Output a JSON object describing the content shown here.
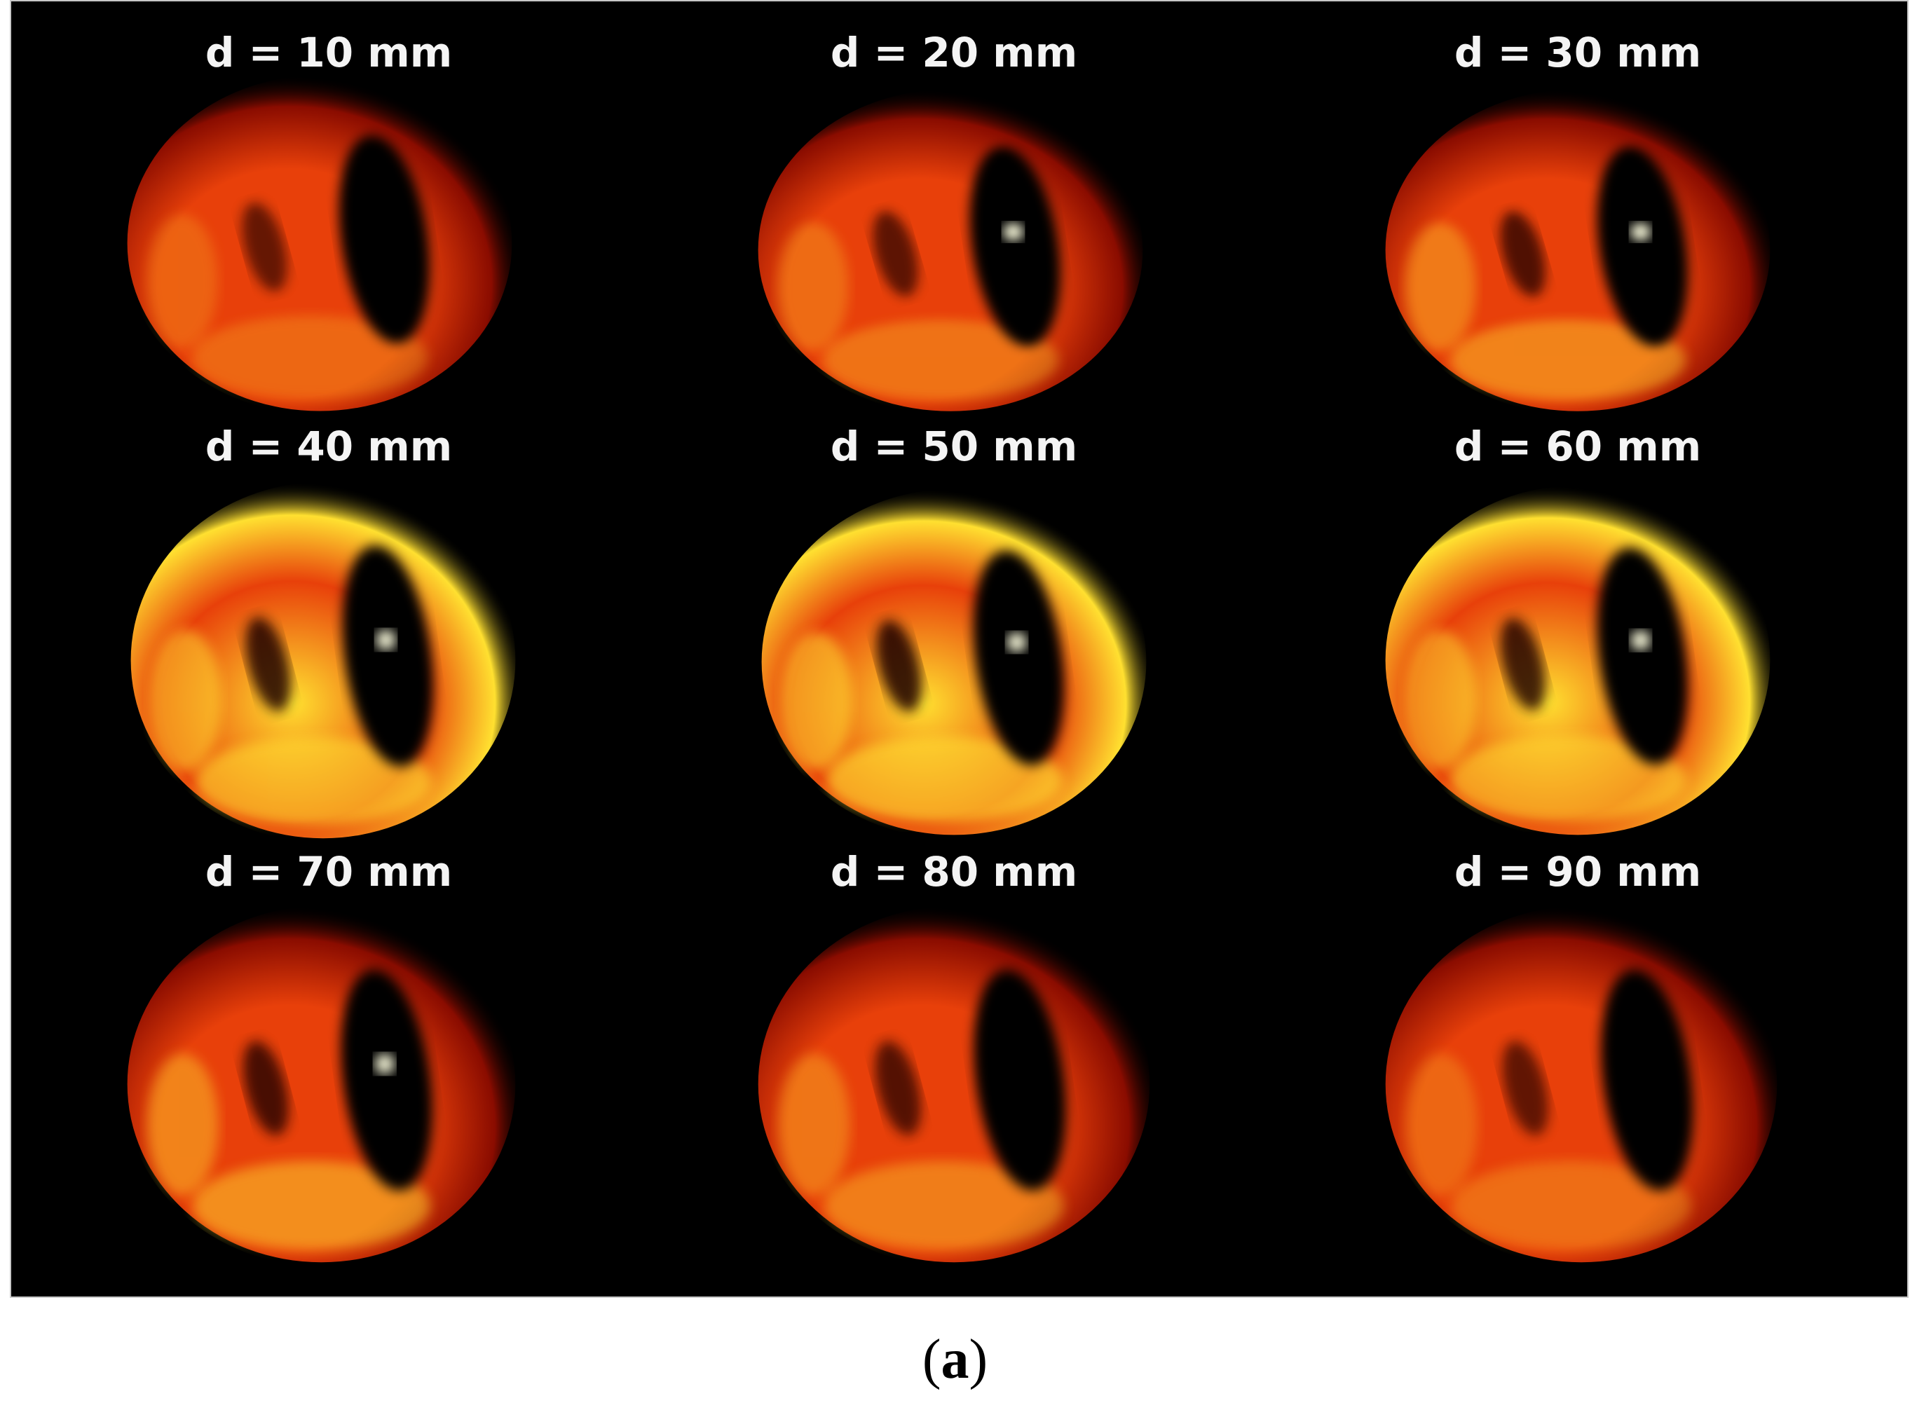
{
  "panels": [
    {
      "label": "d = 10 mm",
      "intensity": 0.35,
      "hot_spot": false
    },
    {
      "label": "d = 20 mm",
      "intensity": 0.45,
      "hot_spot": true
    },
    {
      "label": "d = 30 mm",
      "intensity": 0.6,
      "hot_spot": true
    },
    {
      "label": "d = 40 mm",
      "intensity": 0.85,
      "hot_spot": true
    },
    {
      "label": "d = 50 mm",
      "intensity": 0.9,
      "hot_spot": true
    },
    {
      "label": "d = 60 mm",
      "intensity": 0.8,
      "hot_spot": true
    },
    {
      "label": "d = 70 mm",
      "intensity": 0.7,
      "hot_spot": true
    },
    {
      "label": "d = 80 mm",
      "intensity": 0.55,
      "hot_spot": false
    },
    {
      "label": "d = 90 mm",
      "intensity": 0.4,
      "hot_spot": false
    }
  ],
  "caption": {
    "open": "(",
    "letter": "a",
    "close": ")"
  },
  "colors": {
    "background": "#000000",
    "hot_low": "#8a0c00",
    "hot_mid": "#e8400a",
    "hot_high": "#ffe030",
    "hot_max": "#ffffe0"
  }
}
